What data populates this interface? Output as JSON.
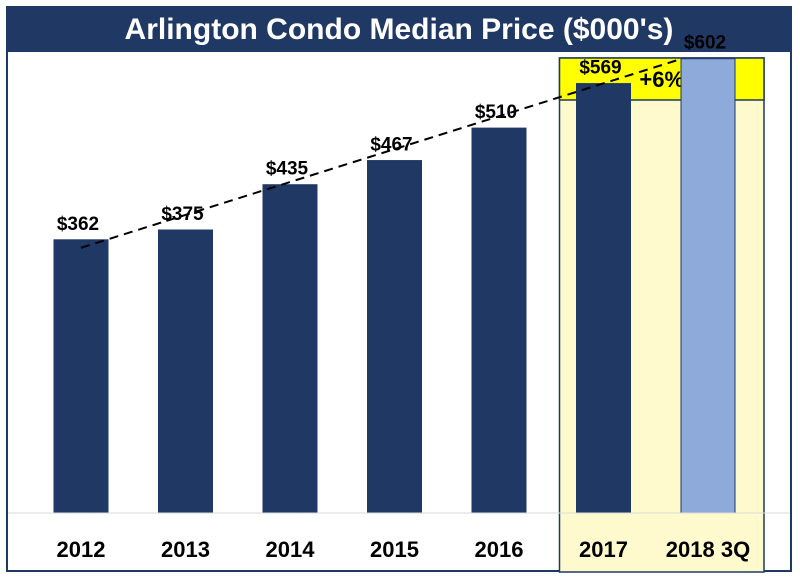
{
  "chart_data": {
    "type": "bar",
    "title": "Arlington Condo Median Price ($000's)",
    "xlabel": "",
    "ylabel": "",
    "ylim": [
      0,
      640
    ],
    "grid": false,
    "categories": [
      "2012",
      "2013",
      "2014",
      "2015",
      "2016",
      "2017",
      "2018 3Q"
    ],
    "values": [
      362,
      375,
      435,
      467,
      510,
      569,
      602
    ],
    "data_labels": [
      "$362",
      "$375",
      "$435",
      "$467",
      "$510",
      "$569",
      "$602"
    ],
    "trendline": {
      "style": "dashed",
      "from": "2012",
      "to": "2018 3Q"
    },
    "highlight": {
      "categories": [
        "2017",
        "2018 3Q"
      ],
      "label": "+6%"
    }
  },
  "colors": {
    "bar": "#1f3864",
    "bar_latest": "#8eaadb",
    "highlight_fill": "#fffacd",
    "badge_fill": "#ffff00",
    "title_bg": "#1f3864",
    "title_text": "#ffffff"
  }
}
